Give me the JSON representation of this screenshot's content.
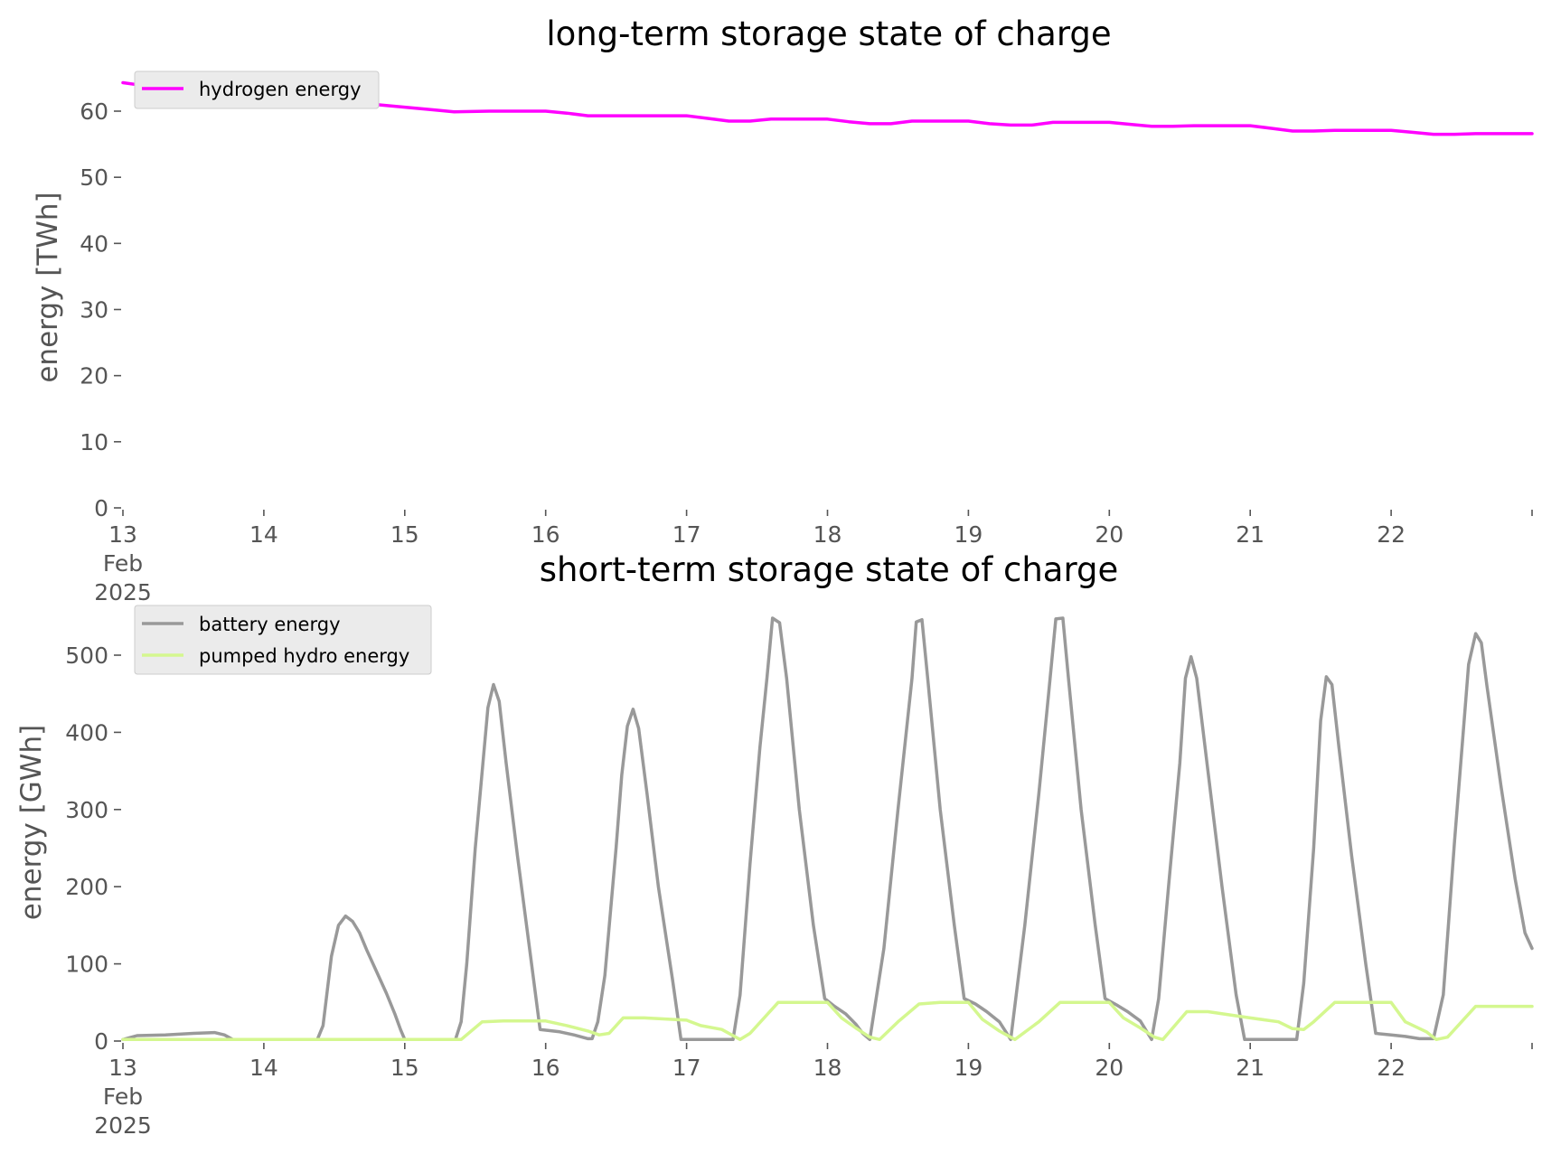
{
  "chart_data": [
    {
      "type": "line",
      "title": "long-term storage state of charge",
      "ylabel": "energy [TWh]",
      "xlabel": "",
      "xlim": [
        13,
        23
      ],
      "ylim": [
        0,
        60
      ],
      "y_ticks": [
        "0",
        "10",
        "20",
        "30",
        "40",
        "50",
        "60"
      ],
      "x_ticks": [
        {
          "x": 13,
          "lines": [
            "13",
            "Feb",
            "2025"
          ]
        },
        {
          "x": 14,
          "lines": [
            "14"
          ]
        },
        {
          "x": 15,
          "lines": [
            "15"
          ]
        },
        {
          "x": 16,
          "lines": [
            "16"
          ]
        },
        {
          "x": 17,
          "lines": [
            "17"
          ]
        },
        {
          "x": 18,
          "lines": [
            "18"
          ]
        },
        {
          "x": 19,
          "lines": [
            "19"
          ]
        },
        {
          "x": 20,
          "lines": [
            "20"
          ]
        },
        {
          "x": 21,
          "lines": [
            "21"
          ]
        },
        {
          "x": 22,
          "lines": [
            "22"
          ]
        }
      ],
      "grid": false,
      "legend_position": "top-left",
      "series": [
        {
          "name": "hydrogen energy",
          "color": "#ff00ff",
          "points": [
            [
              13.0,
              64.3
            ],
            [
              13.1,
              64.0
            ],
            [
              13.2,
              63.7
            ],
            [
              13.3,
              63.4
            ],
            [
              13.5,
              63.0
            ],
            [
              13.7,
              62.5
            ],
            [
              14.0,
              62.0
            ],
            [
              14.2,
              61.5
            ],
            [
              14.4,
              61.2
            ],
            [
              14.6,
              61.3
            ],
            [
              14.8,
              61.0
            ],
            [
              15.0,
              60.6
            ],
            [
              15.2,
              60.2
            ],
            [
              15.35,
              59.9
            ],
            [
              15.6,
              60.0
            ],
            [
              16.0,
              60.0
            ],
            [
              16.15,
              59.7
            ],
            [
              16.3,
              59.3
            ],
            [
              16.6,
              59.3
            ],
            [
              17.0,
              59.3
            ],
            [
              17.15,
              58.9
            ],
            [
              17.3,
              58.5
            ],
            [
              17.45,
              58.5
            ],
            [
              17.6,
              58.8
            ],
            [
              18.0,
              58.8
            ],
            [
              18.15,
              58.4
            ],
            [
              18.3,
              58.1
            ],
            [
              18.45,
              58.1
            ],
            [
              18.6,
              58.5
            ],
            [
              19.0,
              58.5
            ],
            [
              19.15,
              58.1
            ],
            [
              19.3,
              57.9
            ],
            [
              19.45,
              57.9
            ],
            [
              19.6,
              58.3
            ],
            [
              20.0,
              58.3
            ],
            [
              20.15,
              58.0
            ],
            [
              20.3,
              57.7
            ],
            [
              20.45,
              57.7
            ],
            [
              20.6,
              57.8
            ],
            [
              21.0,
              57.8
            ],
            [
              21.15,
              57.4
            ],
            [
              21.3,
              57.0
            ],
            [
              21.45,
              57.0
            ],
            [
              21.6,
              57.1
            ],
            [
              22.0,
              57.1
            ],
            [
              22.15,
              56.8
            ],
            [
              22.3,
              56.5
            ],
            [
              22.45,
              56.5
            ],
            [
              22.6,
              56.6
            ],
            [
              23.0,
              56.6
            ]
          ]
        }
      ]
    },
    {
      "type": "line",
      "title": "short-term storage state of charge",
      "ylabel": "energy [GWh]",
      "xlabel": "",
      "xlim": [
        13,
        23
      ],
      "ylim": [
        0,
        500
      ],
      "y_ticks": [
        "0",
        "100",
        "200",
        "300",
        "400",
        "500"
      ],
      "x_ticks": [
        {
          "x": 13,
          "lines": [
            "13",
            "Feb",
            "2025"
          ]
        },
        {
          "x": 14,
          "lines": [
            "14"
          ]
        },
        {
          "x": 15,
          "lines": [
            "15"
          ]
        },
        {
          "x": 16,
          "lines": [
            "16"
          ]
        },
        {
          "x": 17,
          "lines": [
            "17"
          ]
        },
        {
          "x": 18,
          "lines": [
            "18"
          ]
        },
        {
          "x": 19,
          "lines": [
            "19"
          ]
        },
        {
          "x": 20,
          "lines": [
            "20"
          ]
        },
        {
          "x": 21,
          "lines": [
            "21"
          ]
        },
        {
          "x": 22,
          "lines": [
            "22"
          ]
        }
      ],
      "grid": false,
      "legend_position": "top-left",
      "series": [
        {
          "name": "battery energy",
          "color": "#999999",
          "points": [
            [
              13.0,
              2
            ],
            [
              13.1,
              7
            ],
            [
              13.3,
              8
            ],
            [
              13.5,
              10
            ],
            [
              13.65,
              11
            ],
            [
              13.72,
              8
            ],
            [
              13.78,
              2
            ],
            [
              14.0,
              2
            ],
            [
              14.38,
              2
            ],
            [
              14.42,
              20
            ],
            [
              14.48,
              110
            ],
            [
              14.53,
              150
            ],
            [
              14.58,
              162
            ],
            [
              14.63,
              155
            ],
            [
              14.68,
              140
            ],
            [
              14.73,
              118
            ],
            [
              14.8,
              90
            ],
            [
              14.87,
              62
            ],
            [
              14.93,
              35
            ],
            [
              14.97,
              15
            ],
            [
              15.0,
              2
            ],
            [
              15.36,
              2
            ],
            [
              15.4,
              25
            ],
            [
              15.44,
              100
            ],
            [
              15.5,
              250
            ],
            [
              15.55,
              350
            ],
            [
              15.59,
              432
            ],
            [
              15.63,
              462
            ],
            [
              15.67,
              440
            ],
            [
              15.72,
              360
            ],
            [
              15.8,
              240
            ],
            [
              15.9,
              100
            ],
            [
              15.96,
              15
            ],
            [
              16.1,
              12
            ],
            [
              16.2,
              8
            ],
            [
              16.3,
              3
            ],
            [
              16.33,
              3
            ],
            [
              16.37,
              25
            ],
            [
              16.42,
              85
            ],
            [
              16.5,
              250
            ],
            [
              16.54,
              345
            ],
            [
              16.58,
              408
            ],
            [
              16.62,
              430
            ],
            [
              16.66,
              405
            ],
            [
              16.72,
              320
            ],
            [
              16.8,
              200
            ],
            [
              16.9,
              80
            ],
            [
              16.96,
              2
            ],
            [
              17.33,
              2
            ],
            [
              17.38,
              60
            ],
            [
              17.45,
              230
            ],
            [
              17.52,
              380
            ],
            [
              17.57,
              470
            ],
            [
              17.61,
              548
            ],
            [
              17.66,
              542
            ],
            [
              17.71,
              470
            ],
            [
              17.8,
              300
            ],
            [
              17.9,
              150
            ],
            [
              17.98,
              55
            ],
            [
              18.05,
              45
            ],
            [
              18.13,
              35
            ],
            [
              18.2,
              22
            ],
            [
              18.25,
              10
            ],
            [
              18.3,
              2
            ],
            [
              18.4,
              120
            ],
            [
              18.5,
              300
            ],
            [
              18.6,
              470
            ],
            [
              18.63,
              543
            ],
            [
              18.67,
              546
            ],
            [
              18.71,
              472
            ],
            [
              18.8,
              300
            ],
            [
              18.9,
              150
            ],
            [
              18.97,
              55
            ],
            [
              19.05,
              48
            ],
            [
              19.13,
              38
            ],
            [
              19.22,
              25
            ],
            [
              19.3,
              2
            ],
            [
              19.4,
              150
            ],
            [
              19.5,
              320
            ],
            [
              19.58,
              470
            ],
            [
              19.62,
              547
            ],
            [
              19.67,
              548
            ],
            [
              19.71,
              470
            ],
            [
              19.8,
              300
            ],
            [
              19.9,
              150
            ],
            [
              19.97,
              55
            ],
            [
              20.05,
              47
            ],
            [
              20.13,
              38
            ],
            [
              20.22,
              26
            ],
            [
              20.3,
              2
            ],
            [
              20.35,
              55
            ],
            [
              20.42,
              200
            ],
            [
              20.5,
              360
            ],
            [
              20.54,
              470
            ],
            [
              20.58,
              498
            ],
            [
              20.62,
              470
            ],
            [
              20.7,
              350
            ],
            [
              20.8,
              200
            ],
            [
              20.9,
              60
            ],
            [
              20.96,
              2
            ],
            [
              21.33,
              2
            ],
            [
              21.38,
              75
            ],
            [
              21.45,
              250
            ],
            [
              21.5,
              415
            ],
            [
              21.54,
              472
            ],
            [
              21.58,
              462
            ],
            [
              21.63,
              380
            ],
            [
              21.72,
              240
            ],
            [
              21.82,
              100
            ],
            [
              21.89,
              10
            ],
            [
              22.0,
              8
            ],
            [
              22.1,
              6
            ],
            [
              22.2,
              3
            ],
            [
              22.3,
              3
            ],
            [
              22.37,
              60
            ],
            [
              22.45,
              260
            ],
            [
              22.52,
              420
            ],
            [
              22.55,
              488
            ],
            [
              22.6,
              528
            ],
            [
              22.64,
              516
            ],
            [
              22.68,
              460
            ],
            [
              22.78,
              330
            ],
            [
              22.88,
              210
            ],
            [
              22.95,
              140
            ],
            [
              23.0,
              120
            ]
          ]
        },
        {
          "name": "pumped hydro energy",
          "color": "#d4f78f",
          "points": [
            [
              13.0,
              2
            ],
            [
              15.4,
              2
            ],
            [
              15.55,
              25
            ],
            [
              15.7,
              26
            ],
            [
              16.0,
              26
            ],
            [
              16.15,
              20
            ],
            [
              16.3,
              13
            ],
            [
              16.38,
              8
            ],
            [
              16.45,
              10
            ],
            [
              16.55,
              30
            ],
            [
              16.7,
              30
            ],
            [
              17.0,
              27
            ],
            [
              17.1,
              20
            ],
            [
              17.25,
              15
            ],
            [
              17.38,
              2
            ],
            [
              17.45,
              10
            ],
            [
              17.65,
              50
            ],
            [
              17.8,
              50
            ],
            [
              18.0,
              50
            ],
            [
              18.1,
              30
            ],
            [
              18.2,
              17
            ],
            [
              18.3,
              5
            ],
            [
              18.37,
              2
            ],
            [
              18.5,
              25
            ],
            [
              18.65,
              48
            ],
            [
              18.8,
              50
            ],
            [
              19.0,
              50
            ],
            [
              19.1,
              28
            ],
            [
              19.22,
              13
            ],
            [
              19.33,
              2
            ],
            [
              19.5,
              25
            ],
            [
              19.65,
              50
            ],
            [
              19.8,
              50
            ],
            [
              20.0,
              50
            ],
            [
              20.1,
              30
            ],
            [
              20.22,
              17
            ],
            [
              20.32,
              5
            ],
            [
              20.38,
              2
            ],
            [
              20.55,
              38
            ],
            [
              20.7,
              38
            ],
            [
              21.0,
              30
            ],
            [
              21.2,
              25
            ],
            [
              21.3,
              16
            ],
            [
              21.38,
              15
            ],
            [
              21.45,
              25
            ],
            [
              21.6,
              50
            ],
            [
              21.8,
              50
            ],
            [
              22.0,
              50
            ],
            [
              22.1,
              25
            ],
            [
              22.25,
              12
            ],
            [
              22.32,
              2
            ],
            [
              22.4,
              5
            ],
            [
              22.6,
              45
            ],
            [
              22.8,
              45
            ],
            [
              23.0,
              45
            ]
          ]
        }
      ]
    }
  ]
}
